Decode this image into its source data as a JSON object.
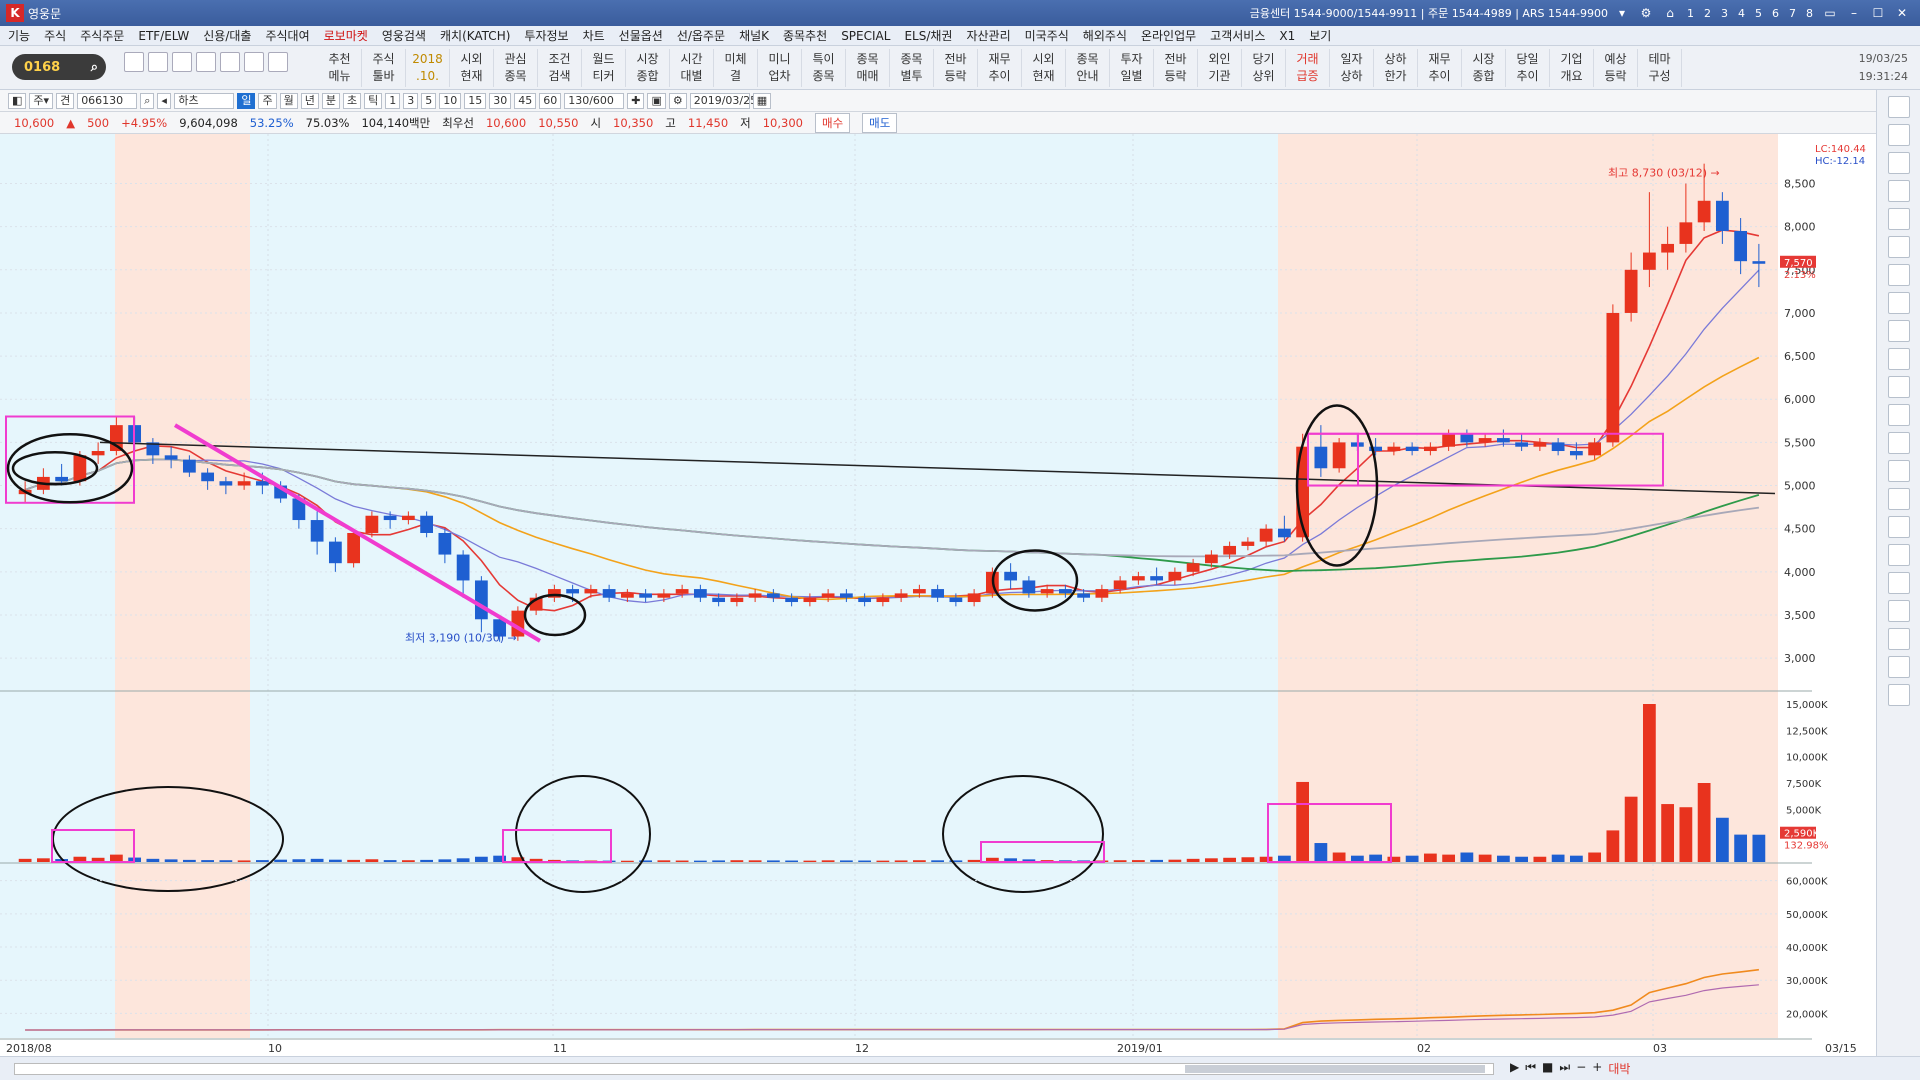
{
  "titlebar": {
    "title": "영웅문",
    "info": "금융센터 1544-9000/1544-9911 | 주문 1544-4989 | ARS 1544-9900",
    "pages": [
      "1",
      "2",
      "3",
      "4",
      "5",
      "6",
      "7",
      "8"
    ]
  },
  "menu": [
    "기능",
    "주식",
    "주식주문",
    "ETF/ELW",
    "신용/대출",
    "주식대여",
    "로보마켓",
    "영웅검색",
    "캐치(KATCH)",
    "투자정보",
    "차트",
    "선물옵션",
    "선/옵주문",
    "채널K",
    "종목추천",
    "SPECIAL",
    "ELS/채권",
    "자산관리",
    "미국주식",
    "해외주식",
    "온라인업무",
    "고객서비스",
    "X1",
    "보기"
  ],
  "menu_highlight": "로보마켓",
  "toolbar": {
    "code": "0168",
    "buttons": [
      {
        "top": "추천",
        "bottom": "메뉴",
        "style": ""
      },
      {
        "top": "주식",
        "bottom": "툴바",
        "style": ""
      },
      {
        "top": "2018",
        "bottom": ".10.",
        "style": "gold"
      },
      {
        "top": "시외",
        "bottom": "현재",
        "style": ""
      },
      {
        "top": "관심",
        "bottom": "종목",
        "style": ""
      },
      {
        "top": "조건",
        "bottom": "검색",
        "style": ""
      },
      {
        "top": "월드",
        "bottom": "티커",
        "style": ""
      },
      {
        "top": "시장",
        "bottom": "종합",
        "style": ""
      },
      {
        "top": "시간",
        "bottom": "대별",
        "style": ""
      },
      {
        "top": "미체",
        "bottom": "결",
        "style": ""
      },
      {
        "top": "미니",
        "bottom": "업차",
        "style": ""
      },
      {
        "top": "특이",
        "bottom": "종목",
        "style": ""
      },
      {
        "top": "종목",
        "bottom": "매매",
        "style": ""
      },
      {
        "top": "종목",
        "bottom": "별투",
        "style": ""
      },
      {
        "top": "전바",
        "bottom": "등락",
        "style": ""
      },
      {
        "top": "재무",
        "bottom": "추이",
        "style": ""
      },
      {
        "top": "시외",
        "bottom": "현재",
        "style": ""
      },
      {
        "top": "종목",
        "bottom": "안내",
        "style": ""
      },
      {
        "top": "투자",
        "bottom": "일별",
        "style": ""
      },
      {
        "top": "전바",
        "bottom": "등락",
        "style": ""
      },
      {
        "top": "외인",
        "bottom": "기관",
        "style": ""
      },
      {
        "top": "당기",
        "bottom": "상위",
        "style": ""
      },
      {
        "top": "거래",
        "bottom": "급증",
        "style": "red"
      },
      {
        "top": "일자",
        "bottom": "상하",
        "style": ""
      },
      {
        "top": "상하",
        "bottom": "한가",
        "style": ""
      },
      {
        "top": "재무",
        "bottom": "추이",
        "style": ""
      },
      {
        "top": "시장",
        "bottom": "종합",
        "style": ""
      },
      {
        "top": "당일",
        "bottom": "추이",
        "style": ""
      },
      {
        "top": "기업",
        "bottom": "개요",
        "style": ""
      },
      {
        "top": "예상",
        "bottom": "등락",
        "style": ""
      },
      {
        "top": "테마",
        "bottom": "구성",
        "style": ""
      }
    ],
    "date": "19/03/25",
    "time": "19:31:24"
  },
  "row3": {
    "stock_code": "066130",
    "stock_name": "하츠",
    "periods": [
      "일",
      "주",
      "월",
      "년",
      "분",
      "초",
      "틱"
    ],
    "selected_period": "일",
    "minutes": [
      "1",
      "3",
      "5",
      "10",
      "15",
      "30",
      "45",
      "60"
    ],
    "count": "130/600",
    "date": "2019/03/25"
  },
  "row4": {
    "price": "10,600",
    "change": "500",
    "pct": "+4.95%",
    "volume": "9,604,098",
    "rate1": "53.25%",
    "rate2": "75.03%",
    "amount": "104,140백만",
    "best_ask_label": "최우선",
    "ask": "10,600",
    "bid": "10,550",
    "open_label": "시",
    "open": "10,350",
    "high_label": "고",
    "high": "11,450",
    "low_label": "저",
    "low": "10,300",
    "buy": "매수",
    "sell": "매도"
  },
  "chart_data": {
    "type": "candlestick",
    "price_axis": {
      "ticks": [
        3000,
        3500,
        4000,
        4500,
        5000,
        5500,
        6000,
        6500,
        7000,
        7500,
        8000,
        8500
      ],
      "ylim": [
        2700,
        8900
      ],
      "tick_labels": [
        "3,000",
        "3,500",
        "4,000",
        "4,500",
        "5,000",
        "5,500",
        "6,000",
        "6,500",
        "7,000",
        "7,500",
        "8,000",
        "8,500"
      ]
    },
    "x_labels": [
      "2018/08",
      "10",
      "11",
      "12",
      "2019/01",
      "02",
      "03",
      "03/15"
    ],
    "current_price_label": "7,570",
    "current_pct_label": "2.13%",
    "lc_label": "LC:140.44",
    "hc_label": "HC:-12.14",
    "high_annotation": "최고 8,730 (03/12) →",
    "low_annotation": "최저 3,190 (10/30) →",
    "candles": [
      {
        "o": 4900,
        "h": 5050,
        "c": 4950,
        "l": 4800
      },
      {
        "o": 4950,
        "h": 5200,
        "c": 5100,
        "l": 4900
      },
      {
        "o": 5100,
        "h": 5250,
        "c": 5050,
        "l": 5000
      },
      {
        "o": 5050,
        "h": 5400,
        "c": 5350,
        "l": 5000
      },
      {
        "o": 5350,
        "h": 5500,
        "c": 5400,
        "l": 5250
      },
      {
        "o": 5400,
        "h": 5800,
        "c": 5700,
        "l": 5350
      },
      {
        "o": 5700,
        "h": 5800,
        "c": 5500,
        "l": 5400
      },
      {
        "o": 5500,
        "h": 5550,
        "c": 5350,
        "l": 5250
      },
      {
        "o": 5350,
        "h": 5450,
        "c": 5300,
        "l": 5200
      },
      {
        "o": 5300,
        "h": 5350,
        "c": 5150,
        "l": 5100
      },
      {
        "o": 5150,
        "h": 5200,
        "c": 5050,
        "l": 4950
      },
      {
        "o": 5050,
        "h": 5100,
        "c": 5000,
        "l": 4900
      },
      {
        "o": 5000,
        "h": 5150,
        "c": 5050,
        "l": 4950
      },
      {
        "o": 5050,
        "h": 5150,
        "c": 5000,
        "l": 4900
      },
      {
        "o": 5000,
        "h": 5050,
        "c": 4850,
        "l": 4800
      },
      {
        "o": 4850,
        "h": 4900,
        "c": 4600,
        "l": 4500
      },
      {
        "o": 4600,
        "h": 4700,
        "c": 4350,
        "l": 4200
      },
      {
        "o": 4350,
        "h": 4400,
        "c": 4100,
        "l": 4000
      },
      {
        "o": 4100,
        "h": 4500,
        "c": 4450,
        "l": 4050
      },
      {
        "o": 4450,
        "h": 4700,
        "c": 4650,
        "l": 4400
      },
      {
        "o": 4650,
        "h": 4700,
        "c": 4600,
        "l": 4500
      },
      {
        "o": 4600,
        "h": 4700,
        "c": 4650,
        "l": 4550
      },
      {
        "o": 4650,
        "h": 4700,
        "c": 4450,
        "l": 4400
      },
      {
        "o": 4450,
        "h": 4500,
        "c": 4200,
        "l": 4100
      },
      {
        "o": 4200,
        "h": 4250,
        "c": 3900,
        "l": 3700
      },
      {
        "o": 3900,
        "h": 3950,
        "c": 3450,
        "l": 3300
      },
      {
        "o": 3450,
        "h": 3500,
        "c": 3250,
        "l": 3190
      },
      {
        "o": 3250,
        "h": 3600,
        "c": 3550,
        "l": 3200
      },
      {
        "o": 3550,
        "h": 3750,
        "c": 3700,
        "l": 3500
      },
      {
        "o": 3700,
        "h": 3850,
        "c": 3800,
        "l": 3650
      },
      {
        "o": 3800,
        "h": 3850,
        "c": 3750,
        "l": 3650
      },
      {
        "o": 3750,
        "h": 3850,
        "c": 3800,
        "l": 3700
      },
      {
        "o": 3800,
        "h": 3850,
        "c": 3700,
        "l": 3650
      },
      {
        "o": 3700,
        "h": 3800,
        "c": 3750,
        "l": 3650
      },
      {
        "o": 3750,
        "h": 3800,
        "c": 3700,
        "l": 3650
      },
      {
        "o": 3700,
        "h": 3800,
        "c": 3750,
        "l": 3650
      },
      {
        "o": 3750,
        "h": 3850,
        "c": 3800,
        "l": 3700
      },
      {
        "o": 3800,
        "h": 3850,
        "c": 3700,
        "l": 3650
      },
      {
        "o": 3700,
        "h": 3750,
        "c": 3650,
        "l": 3600
      },
      {
        "o": 3650,
        "h": 3750,
        "c": 3700,
        "l": 3600
      },
      {
        "o": 3700,
        "h": 3800,
        "c": 3750,
        "l": 3650
      },
      {
        "o": 3750,
        "h": 3800,
        "c": 3700,
        "l": 3650
      },
      {
        "o": 3700,
        "h": 3750,
        "c": 3650,
        "l": 3600
      },
      {
        "o": 3650,
        "h": 3750,
        "c": 3700,
        "l": 3600
      },
      {
        "o": 3700,
        "h": 3800,
        "c": 3750,
        "l": 3650
      },
      {
        "o": 3750,
        "h": 3800,
        "c": 3700,
        "l": 3650
      },
      {
        "o": 3700,
        "h": 3750,
        "c": 3650,
        "l": 3600
      },
      {
        "o": 3650,
        "h": 3750,
        "c": 3700,
        "l": 3600
      },
      {
        "o": 3700,
        "h": 3800,
        "c": 3750,
        "l": 3650
      },
      {
        "o": 3750,
        "h": 3850,
        "c": 3800,
        "l": 3700
      },
      {
        "o": 3800,
        "h": 3850,
        "c": 3700,
        "l": 3650
      },
      {
        "o": 3700,
        "h": 3750,
        "c": 3650,
        "l": 3600
      },
      {
        "o": 3650,
        "h": 3800,
        "c": 3750,
        "l": 3600
      },
      {
        "o": 3750,
        "h": 4050,
        "c": 4000,
        "l": 3700
      },
      {
        "o": 4000,
        "h": 4100,
        "c": 3900,
        "l": 3800
      },
      {
        "o": 3900,
        "h": 3950,
        "c": 3750,
        "l": 3700
      },
      {
        "o": 3750,
        "h": 3850,
        "c": 3800,
        "l": 3700
      },
      {
        "o": 3800,
        "h": 3850,
        "c": 3750,
        "l": 3700
      },
      {
        "o": 3750,
        "h": 3800,
        "c": 3700,
        "l": 3650
      },
      {
        "o": 3700,
        "h": 3850,
        "c": 3800,
        "l": 3650
      },
      {
        "o": 3800,
        "h": 3950,
        "c": 3900,
        "l": 3750
      },
      {
        "o": 3900,
        "h": 4000,
        "c": 3950,
        "l": 3850
      },
      {
        "o": 3950,
        "h": 4050,
        "c": 3900,
        "l": 3850
      },
      {
        "o": 3900,
        "h": 4050,
        "c": 4000,
        "l": 3850
      },
      {
        "o": 4000,
        "h": 4150,
        "c": 4100,
        "l": 3950
      },
      {
        "o": 4100,
        "h": 4250,
        "c": 4200,
        "l": 4050
      },
      {
        "o": 4200,
        "h": 4350,
        "c": 4300,
        "l": 4150
      },
      {
        "o": 4300,
        "h": 4400,
        "c": 4350,
        "l": 4250
      },
      {
        "o": 4350,
        "h": 4550,
        "c": 4500,
        "l": 4300
      },
      {
        "o": 4500,
        "h": 4650,
        "c": 4400,
        "l": 4350
      },
      {
        "o": 4400,
        "h": 5600,
        "c": 5450,
        "l": 4350
      },
      {
        "o": 5450,
        "h": 5700,
        "c": 5200,
        "l": 5100
      },
      {
        "o": 5200,
        "h": 5550,
        "c": 5500,
        "l": 5150
      },
      {
        "o": 5500,
        "h": 5600,
        "c": 5450,
        "l": 5400
      },
      {
        "o": 5450,
        "h": 5550,
        "c": 5400,
        "l": 5350
      },
      {
        "o": 5400,
        "h": 5500,
        "c": 5450,
        "l": 5350
      },
      {
        "o": 5450,
        "h": 5500,
        "c": 5400,
        "l": 5350
      },
      {
        "o": 5400,
        "h": 5500,
        "c": 5450,
        "l": 5350
      },
      {
        "o": 5450,
        "h": 5650,
        "c": 5600,
        "l": 5400
      },
      {
        "o": 5600,
        "h": 5650,
        "c": 5500,
        "l": 5450
      },
      {
        "o": 5500,
        "h": 5600,
        "c": 5550,
        "l": 5450
      },
      {
        "o": 5550,
        "h": 5650,
        "c": 5500,
        "l": 5450
      },
      {
        "o": 5500,
        "h": 5600,
        "c": 5450,
        "l": 5400
      },
      {
        "o": 5450,
        "h": 5550,
        "c": 5500,
        "l": 5400
      },
      {
        "o": 5500,
        "h": 5550,
        "c": 5400,
        "l": 5350
      },
      {
        "o": 5400,
        "h": 5500,
        "c": 5350,
        "l": 5300
      },
      {
        "o": 5350,
        "h": 5550,
        "c": 5500,
        "l": 5300
      },
      {
        "o": 5500,
        "h": 7100,
        "c": 7000,
        "l": 5450
      },
      {
        "o": 7000,
        "h": 7700,
        "c": 7500,
        "l": 6900
      },
      {
        "o": 7500,
        "h": 8400,
        "c": 7700,
        "l": 7300
      },
      {
        "o": 7700,
        "h": 8000,
        "c": 7800,
        "l": 7500
      },
      {
        "o": 7800,
        "h": 8500,
        "c": 8050,
        "l": 7700
      },
      {
        "o": 8050,
        "h": 8730,
        "c": 8300,
        "l": 7950
      },
      {
        "o": 8300,
        "h": 8400,
        "c": 7950,
        "l": 7800
      },
      {
        "o": 7950,
        "h": 8100,
        "c": 7600,
        "l": 7450
      },
      {
        "o": 7600,
        "h": 7800,
        "c": 7570,
        "l": 7300
      }
    ],
    "volume_axis": {
      "ticks": [
        20000,
        30000,
        40000,
        50000,
        60000
      ],
      "labels": [
        "20,000K",
        "30,000K",
        "40,000K",
        "50,000K",
        "60,000K"
      ]
    },
    "volume_panel_axis": {
      "labels": [
        "5,000K",
        "7,500K",
        "10,000K",
        "12,500K",
        "15,000K"
      ]
    },
    "volume_label": "2,590K",
    "volume_pct_label": "132.98%",
    "volumes": [
      300,
      350,
      280,
      500,
      400,
      700,
      420,
      300,
      250,
      200,
      180,
      170,
      150,
      180,
      220,
      260,
      300,
      220,
      200,
      260,
      180,
      170,
      200,
      250,
      350,
      500,
      600,
      450,
      300,
      200,
      150,
      140,
      130,
      120,
      150,
      160,
      140,
      130,
      150,
      170,
      160,
      150,
      140,
      130,
      160,
      150,
      140,
      130,
      150,
      170,
      160,
      150,
      200,
      400,
      350,
      250,
      180,
      160,
      150,
      140,
      170,
      180,
      200,
      220,
      300,
      350,
      400,
      450,
      500,
      600,
      7600,
      1800,
      900,
      600,
      700,
      500,
      600,
      800,
      700,
      900,
      700,
      600,
      500,
      500,
      700,
      600,
      900,
      3000,
      6200,
      15000,
      5500,
      5200,
      7500,
      4200,
      2600,
      2590
    ]
  },
  "status": {
    "bottom_right": "대박"
  }
}
